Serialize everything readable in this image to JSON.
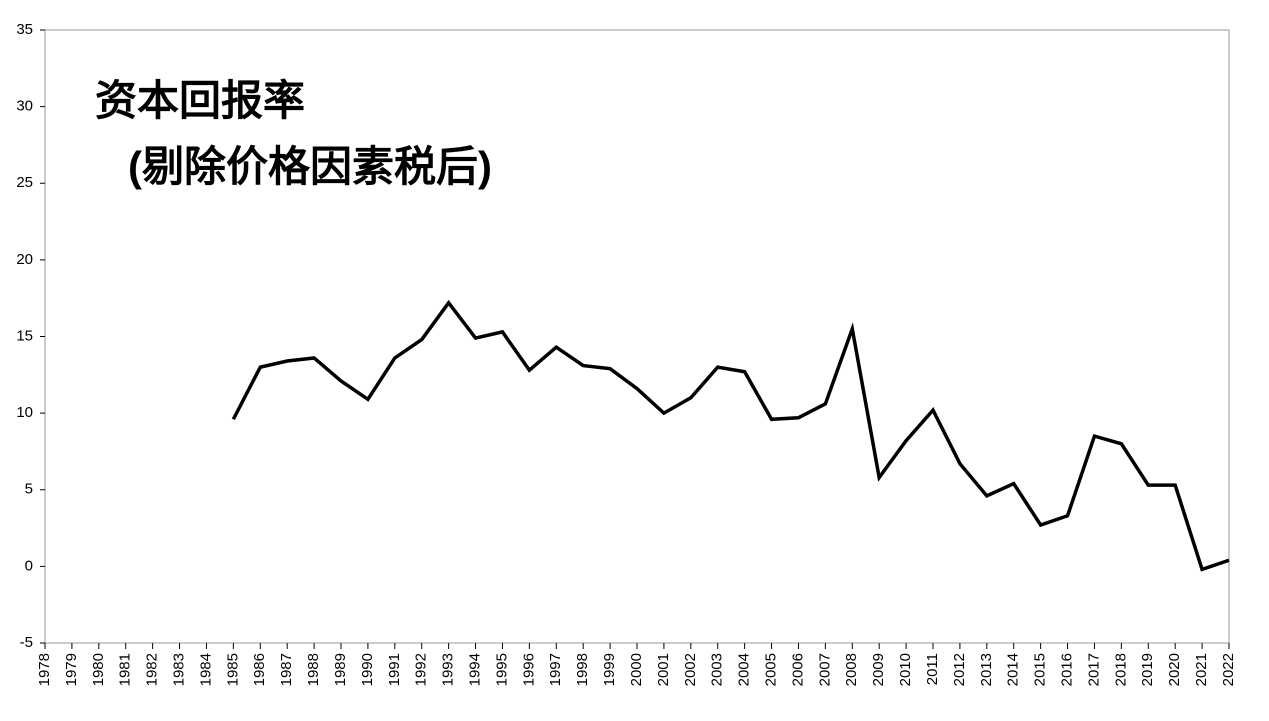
{
  "chart_data": {
    "type": "line",
    "title": "资本回报率",
    "subtitle": "(剔除价格因素税后)",
    "x": [
      1978,
      1979,
      1980,
      1981,
      1982,
      1983,
      1984,
      1985,
      1986,
      1987,
      1988,
      1989,
      1990,
      1991,
      1992,
      1993,
      1994,
      1995,
      1996,
      1997,
      1998,
      1999,
      2000,
      2001,
      2002,
      2003,
      2004,
      2005,
      2006,
      2007,
      2008,
      2009,
      2010,
      2011,
      2012,
      2013,
      2014,
      2015,
      2016,
      2017,
      2018,
      2019,
      2020,
      2021,
      2022
    ],
    "values": [
      null,
      null,
      null,
      null,
      null,
      null,
      null,
      9.6,
      13.0,
      13.4,
      13.6,
      12.1,
      10.9,
      13.6,
      14.8,
      17.2,
      14.9,
      15.3,
      12.8,
      14.3,
      13.1,
      12.9,
      11.6,
      10.0,
      11.0,
      13.0,
      12.7,
      9.6,
      9.7,
      10.6,
      15.5,
      5.8,
      8.2,
      10.2,
      6.7,
      4.6,
      5.4,
      2.7,
      3.3,
      8.5,
      8.0,
      5.3,
      5.3,
      -0.2,
      0.4
    ],
    "color": "#000000",
    "xlim": [
      1978,
      2022
    ],
    "xticks": [
      1978,
      1979,
      1980,
      1981,
      1982,
      1983,
      1984,
      1985,
      1986,
      1987,
      1988,
      1989,
      1990,
      1991,
      1992,
      1993,
      1994,
      1995,
      1996,
      1997,
      1998,
      1999,
      2000,
      2001,
      2002,
      2003,
      2004,
      2005,
      2006,
      2007,
      2008,
      2009,
      2010,
      2011,
      2012,
      2013,
      2014,
      2015,
      2016,
      2017,
      2018,
      2019,
      2020,
      2021,
      2022
    ],
    "ylim": [
      -5,
      35
    ],
    "yticks": [
      -5,
      0,
      5,
      10,
      15,
      20,
      25,
      30,
      35
    ]
  }
}
